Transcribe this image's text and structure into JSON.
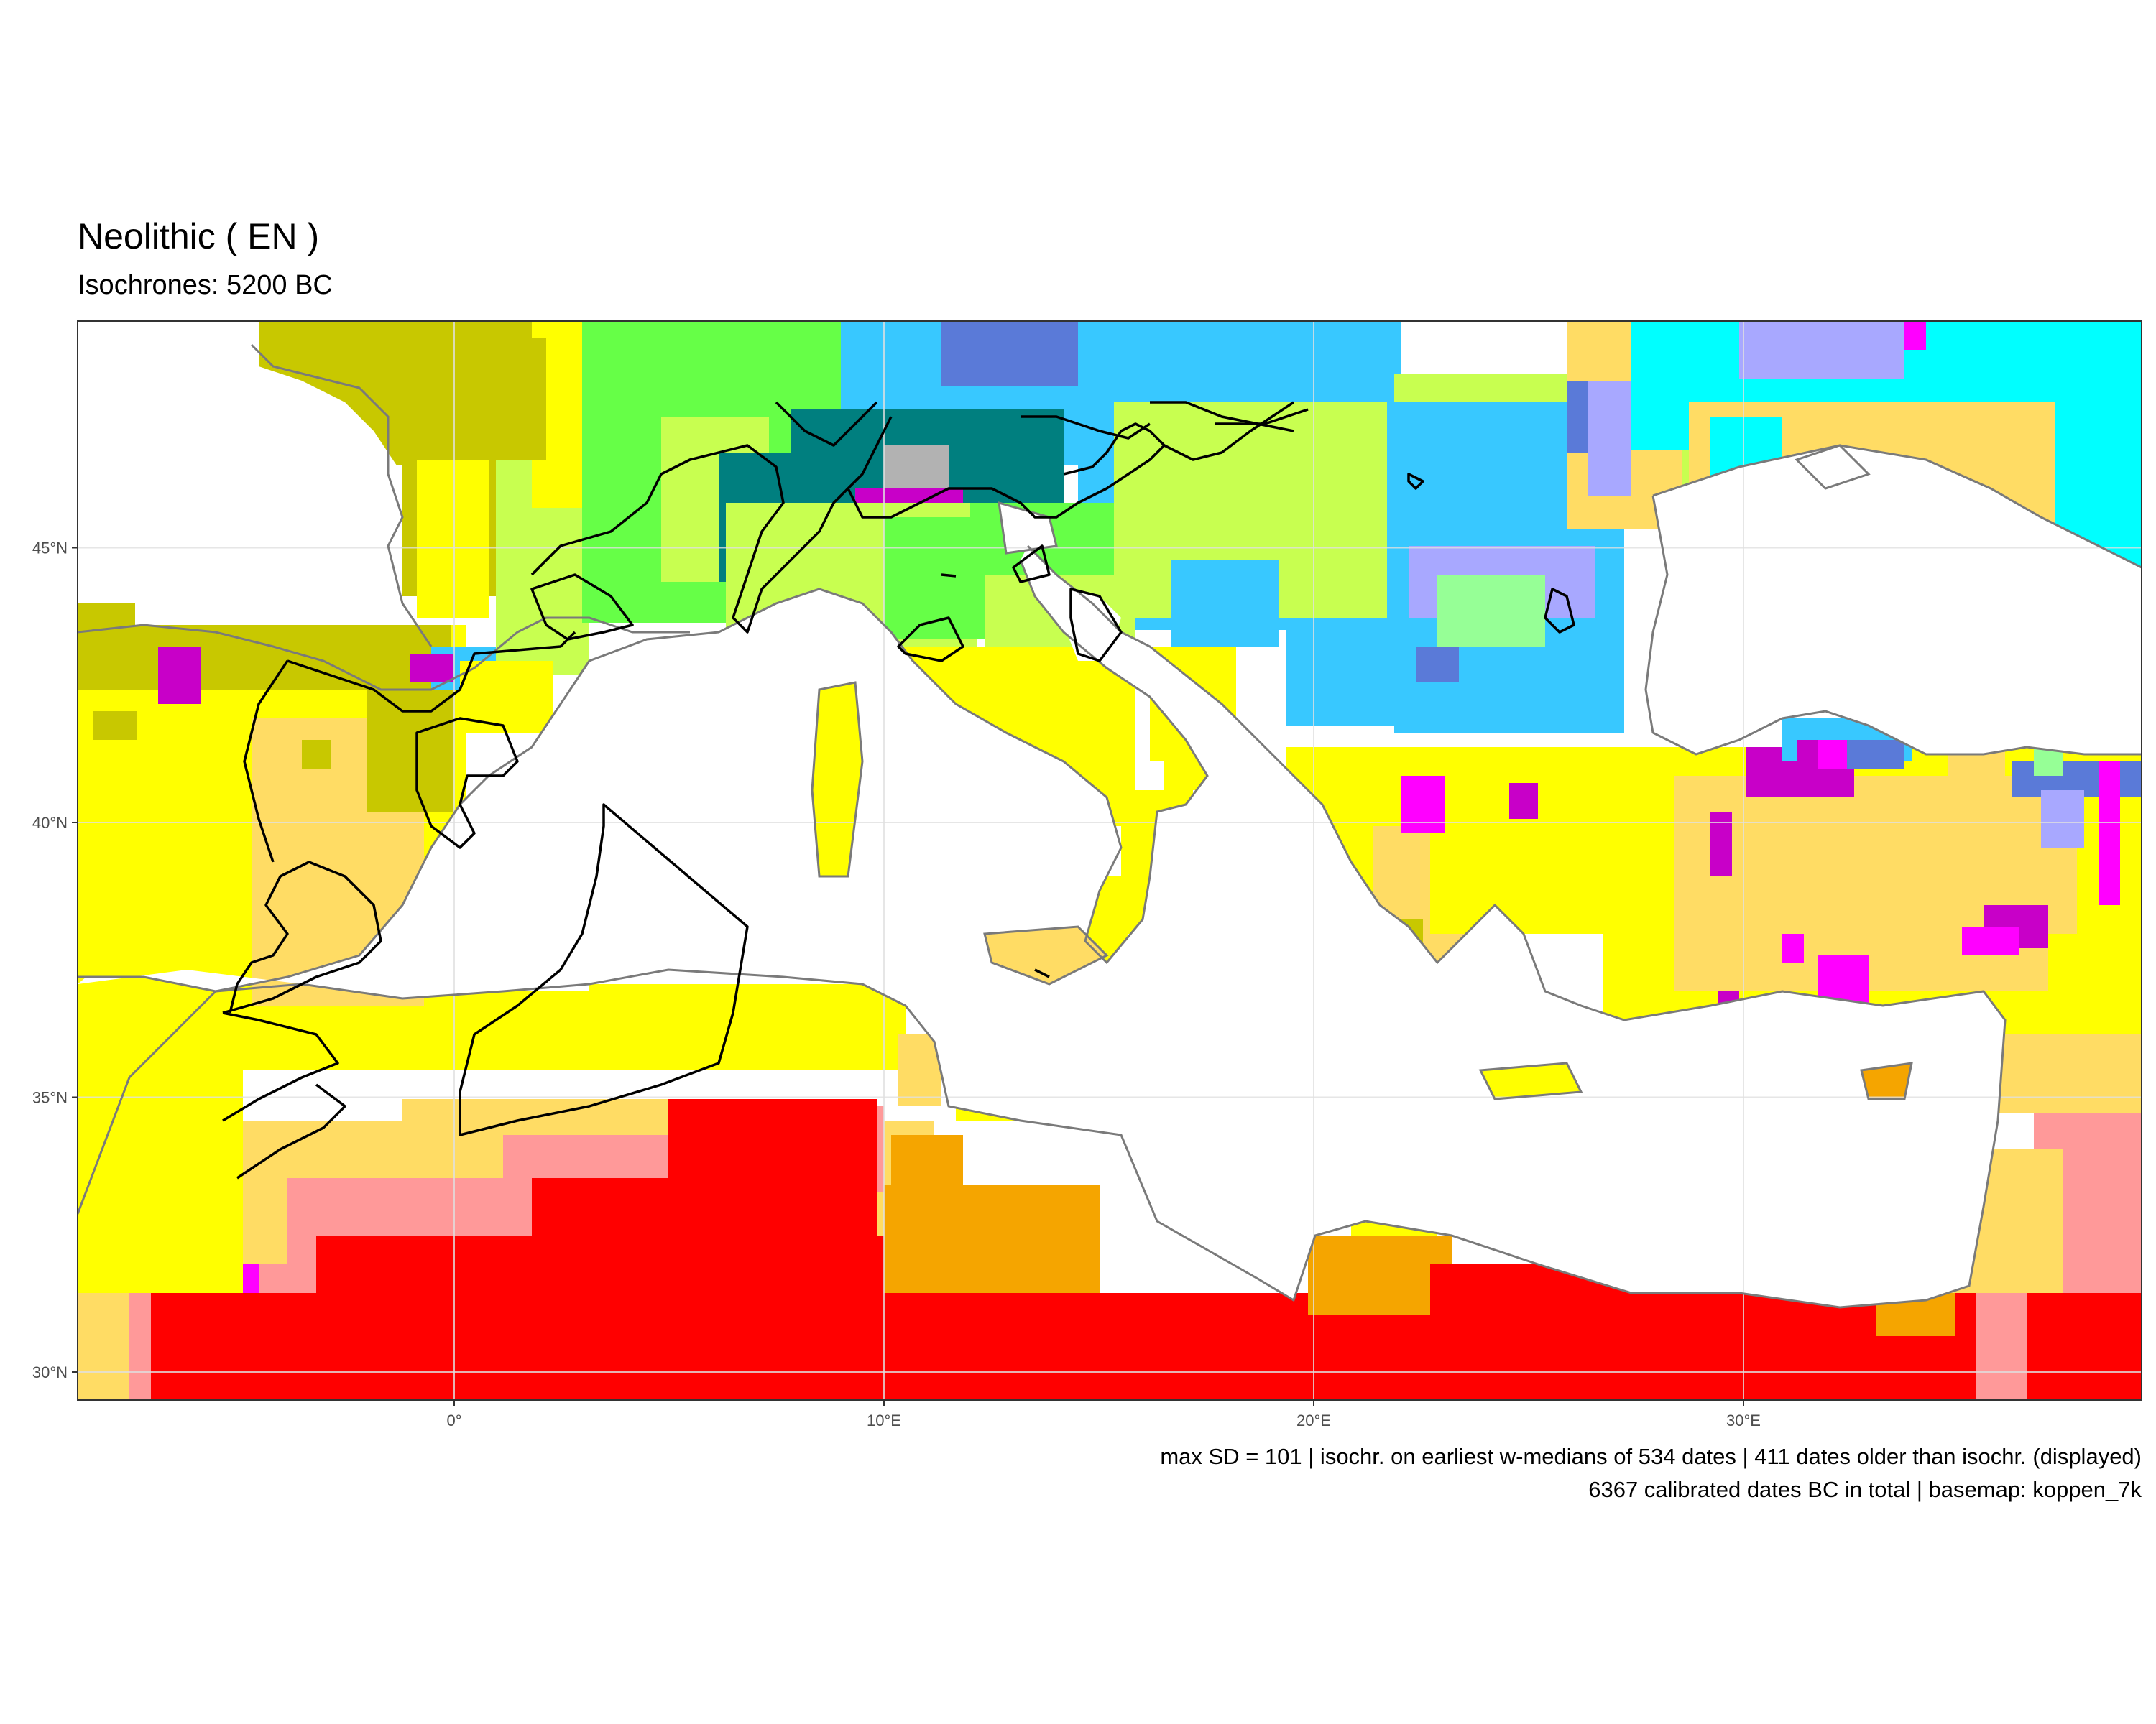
{
  "title": "Neolithic ( EN )",
  "subtitle": "Isochrones: 5200 BC",
  "caption_line1": "max SD = 101 | isochr. on earliest w-medians of 534 dates | 411 dates older than isochr. (displayed)",
  "caption_line2": "6367 calibrated dates BC in total | basemap: koppen_7k",
  "axes": {
    "x_ticks": [
      {
        "value": 0,
        "label": "0°"
      },
      {
        "value": 10,
        "label": "10°E"
      },
      {
        "value": 20,
        "label": "20°E"
      },
      {
        "value": 30,
        "label": "30°E"
      }
    ],
    "y_ticks": [
      {
        "value": 30,
        "label": "30°N"
      },
      {
        "value": 35,
        "label": "35°N"
      },
      {
        "value": 40,
        "label": "40°N"
      },
      {
        "value": 45,
        "label": "45°N"
      }
    ],
    "lon_range": [
      -8.8,
      39.5
    ],
    "lat_range": [
      29.7,
      49.3
    ],
    "grid": true
  },
  "colors": {
    "desert_hot": "#ff0000",
    "desert_pink": "#ff9999",
    "steppe_orange": "#f5a500",
    "steppe_tan": "#ffdc64",
    "mediterranean": "#ffff00",
    "olive": "#c8c800",
    "temperate_green": "#66ff47",
    "temperate_lime": "#c8ff50",
    "continental_blue": "#38c8ff",
    "continental_dark": "#5a7ad8",
    "alpine_teal": "#007f7f",
    "tundra_gray": "#b2b2b2",
    "cyan": "#00ffff",
    "lavender": "#a8a8ff",
    "magenta": "#ff00ff",
    "purple": "#c800c8",
    "mint": "#96ff96",
    "coast": "#7a7a7a",
    "isochrone": "#000000"
  }
}
